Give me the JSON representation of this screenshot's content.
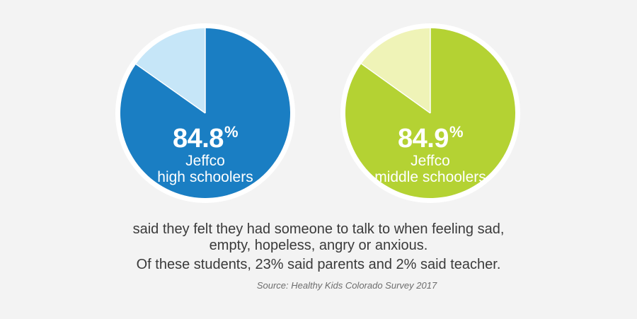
{
  "chart_data": [
    {
      "type": "pie",
      "values": [
        84.8,
        15.2
      ],
      "value_label": "84.8",
      "unit": "%",
      "label_lines": [
        "Jeffco",
        "high schoolers"
      ],
      "colors": [
        "#1a7ec3",
        "#c6e6f8"
      ]
    },
    {
      "type": "pie",
      "values": [
        84.9,
        15.1
      ],
      "value_label": "84.9",
      "unit": "%",
      "label_lines": [
        "Jeffco",
        "middle schoolers"
      ],
      "colors": [
        "#b4d233",
        "#eff3b7"
      ]
    }
  ],
  "caption": {
    "lines": [
      "said they felt they had someone to talk to when feeling sad,",
      "empty, hopeless, angry or anxious.",
      "Of these students, 23% said parents and 2% said teacher."
    ]
  },
  "source": "Source: Healthy Kids Colorado Survey 2017"
}
